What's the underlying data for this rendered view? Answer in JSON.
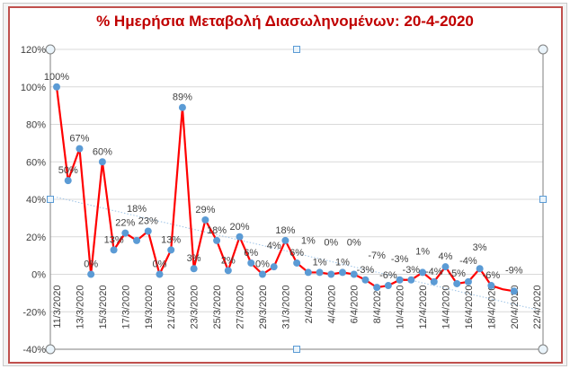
{
  "chart_data": {
    "type": "line",
    "title": "% Ημερήσια Μεταβολή Διασωληνομένων: 20-4-2020",
    "ylim": [
      -40,
      120
    ],
    "yticks": [
      -40,
      -20,
      0,
      20,
      40,
      60,
      80,
      100,
      120
    ],
    "ytick_labels": [
      "-40%",
      "-20%",
      "0%",
      "20%",
      "40%",
      "60%",
      "80%",
      "100%",
      "120%"
    ],
    "xtick_labels": [
      "11/3/2020",
      "13/3/2020",
      "15/3/2020",
      "17/3/2020",
      "19/3/2020",
      "21/3/2020",
      "23/3/2020",
      "25/3/2020",
      "27/3/2020",
      "29/3/2020",
      "31/3/2020",
      "2/4/2020",
      "4/4/2020",
      "6/4/2020",
      "8/4/2020",
      "10/4/2020",
      "12/4/2020",
      "14/4/2020",
      "16/4/2020",
      "18/4/2020",
      "20/4/2020",
      "22/4/2020"
    ],
    "x_start": "11/3/2020",
    "grid": true,
    "series": [
      {
        "color": "#ff0000",
        "marker_color": "#5b9bd5",
        "values": [
          100,
          50,
          67,
          0,
          60,
          13,
          22,
          18,
          23,
          0,
          13,
          89,
          3,
          29,
          18,
          2,
          20,
          6,
          0,
          4,
          18,
          6,
          1,
          1,
          0,
          1,
          0,
          -3,
          -7,
          -6,
          -3,
          -3,
          1,
          -4,
          4,
          -5,
          -4,
          3,
          -6,
          -8,
          -9
        ],
        "labels": [
          "100%",
          "50%",
          "67%",
          "0%",
          "60%",
          "13%",
          "22%",
          "18%",
          "23%",
          "0%",
          "13%",
          "89%",
          "3%",
          "29%",
          "18%",
          "2%",
          "20%",
          "6%",
          "0%",
          "4%",
          "18%",
          "6%",
          "1%",
          "1%",
          "0%",
          "1%",
          "0%",
          "-3%",
          "-7%",
          "-6%",
          "-3%",
          "-3%",
          "1%",
          "-4%",
          "4%",
          "-5%",
          "-4%",
          "3%",
          "-6%",
          "",
          "-9%"
        ]
      }
    ],
    "trendline": {
      "type": "linear",
      "style": "dotted",
      "color": "#9dc3e6"
    },
    "gridline_color": "#d9d9d9"
  }
}
